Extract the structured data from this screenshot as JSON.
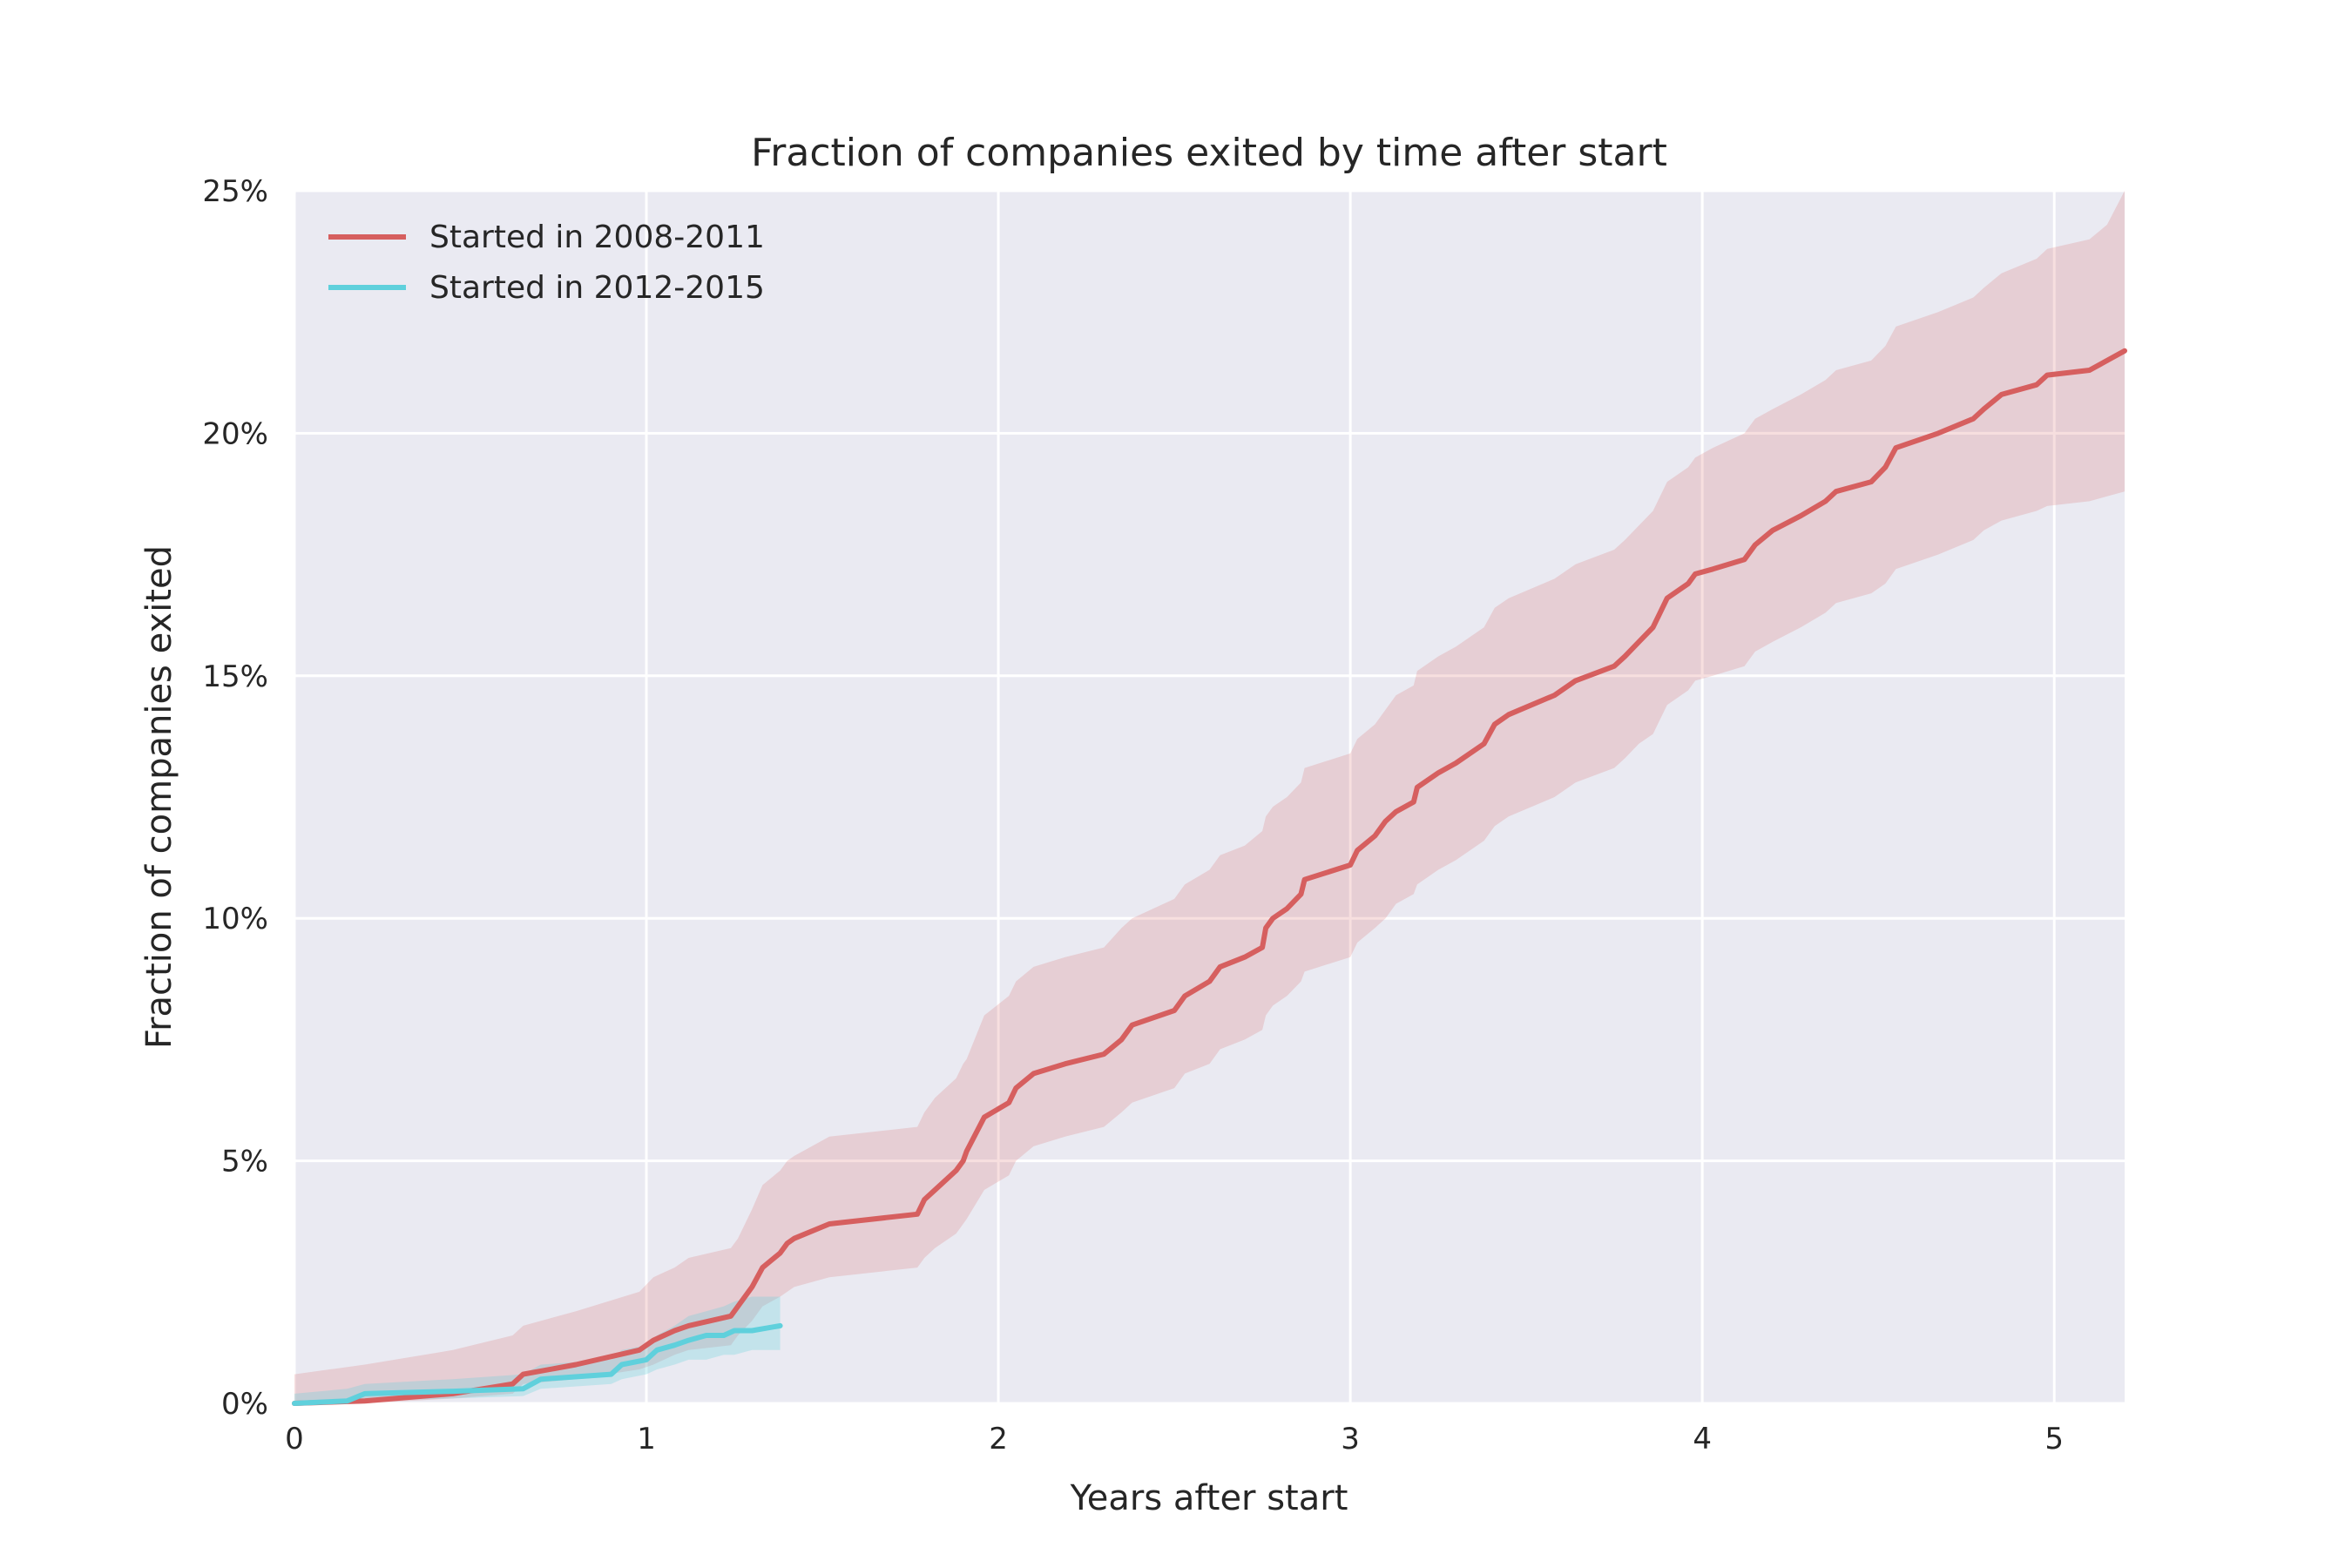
{
  "chart_data": {
    "type": "line",
    "title": "Fraction of companies exited by time after start",
    "xlabel": "Years after start",
    "ylabel": "Fraction of companies exited",
    "xlim": [
      0,
      5.2
    ],
    "ylim": [
      0,
      0.25
    ],
    "xticks": [
      0,
      1,
      2,
      3,
      4,
      5
    ],
    "xtick_labels": [
      "0",
      "1",
      "2",
      "3",
      "4",
      "5"
    ],
    "yticks": [
      0,
      0.05,
      0.1,
      0.15,
      0.2,
      0.25
    ],
    "ytick_labels": [
      "0%",
      "5%",
      "10%",
      "15%",
      "20%",
      "25%"
    ],
    "grid": true,
    "legend_position": "top-left",
    "series": [
      {
        "name": "Started in 2008-2011",
        "color": "#d65f5f",
        "x": [
          0,
          0.2,
          0.45,
          0.62,
          0.65,
          0.8,
          0.98,
          1.02,
          1.08,
          1.12,
          1.24,
          1.26,
          1.3,
          1.33,
          1.38,
          1.4,
          1.42,
          1.52,
          1.77,
          1.79,
          1.82,
          1.88,
          1.9,
          1.91,
          1.96,
          2.03,
          2.05,
          2.1,
          2.19,
          2.3,
          2.35,
          2.38,
          2.5,
          2.53,
          2.6,
          2.63,
          2.7,
          2.75,
          2.76,
          2.78,
          2.82,
          2.86,
          2.87,
          3.0,
          3.02,
          3.07,
          3.1,
          3.13,
          3.18,
          3.19,
          3.25,
          3.3,
          3.38,
          3.41,
          3.45,
          3.58,
          3.64,
          3.75,
          3.78,
          3.82,
          3.86,
          3.88,
          3.9,
          3.96,
          3.98,
          4.03,
          4.12,
          4.15,
          4.2,
          4.28,
          4.35,
          4.38,
          4.48,
          4.52,
          4.55,
          4.67,
          4.77,
          4.8,
          4.85,
          4.95,
          4.98,
          5.1,
          5.15,
          5.2
        ],
        "values": [
          0,
          0.0005,
          0.002,
          0.004,
          0.006,
          0.008,
          0.011,
          0.013,
          0.015,
          0.016,
          0.018,
          0.02,
          0.024,
          0.028,
          0.031,
          0.033,
          0.034,
          0.037,
          0.039,
          0.042,
          0.044,
          0.048,
          0.05,
          0.052,
          0.059,
          0.062,
          0.065,
          0.068,
          0.07,
          0.072,
          0.075,
          0.078,
          0.081,
          0.084,
          0.087,
          0.09,
          0.092,
          0.094,
          0.098,
          0.1,
          0.102,
          0.105,
          0.108,
          0.111,
          0.114,
          0.117,
          0.12,
          0.122,
          0.124,
          0.127,
          0.13,
          0.132,
          0.136,
          0.14,
          0.142,
          0.146,
          0.149,
          0.152,
          0.154,
          0.157,
          0.16,
          0.163,
          0.166,
          0.169,
          0.171,
          0.172,
          0.174,
          0.177,
          0.18,
          0.183,
          0.186,
          0.188,
          0.19,
          0.193,
          0.197,
          0.2,
          0.203,
          0.205,
          0.208,
          0.21,
          0.212,
          0.213,
          0.215,
          0.217
        ],
        "band_lower": [
          0,
          0,
          0.001,
          0.002,
          0.004,
          0.005,
          0.007,
          0.008,
          0.01,
          0.011,
          0.012,
          0.014,
          0.017,
          0.02,
          0.022,
          0.023,
          0.024,
          0.026,
          0.028,
          0.03,
          0.032,
          0.035,
          0.037,
          0.038,
          0.044,
          0.047,
          0.05,
          0.053,
          0.055,
          0.057,
          0.06,
          0.062,
          0.065,
          0.068,
          0.07,
          0.073,
          0.075,
          0.077,
          0.08,
          0.082,
          0.084,
          0.087,
          0.089,
          0.092,
          0.095,
          0.098,
          0.1,
          0.103,
          0.105,
          0.107,
          0.11,
          0.112,
          0.116,
          0.119,
          0.121,
          0.125,
          0.128,
          0.131,
          0.133,
          0.136,
          0.138,
          0.141,
          0.144,
          0.147,
          0.149,
          0.15,
          0.152,
          0.155,
          0.157,
          0.16,
          0.163,
          0.165,
          0.167,
          0.169,
          0.172,
          0.175,
          0.178,
          0.18,
          0.182,
          0.184,
          0.185,
          0.186,
          0.187,
          0.188
        ],
        "band_upper": [
          0.006,
          0.008,
          0.011,
          0.014,
          0.016,
          0.019,
          0.023,
          0.026,
          0.028,
          0.03,
          0.032,
          0.034,
          0.04,
          0.045,
          0.048,
          0.05,
          0.051,
          0.055,
          0.057,
          0.06,
          0.063,
          0.067,
          0.07,
          0.071,
          0.08,
          0.084,
          0.087,
          0.09,
          0.092,
          0.094,
          0.098,
          0.1,
          0.104,
          0.107,
          0.11,
          0.113,
          0.115,
          0.118,
          0.121,
          0.123,
          0.125,
          0.128,
          0.131,
          0.134,
          0.137,
          0.14,
          0.143,
          0.146,
          0.148,
          0.151,
          0.154,
          0.156,
          0.16,
          0.164,
          0.166,
          0.17,
          0.173,
          0.176,
          0.178,
          0.181,
          0.184,
          0.187,
          0.19,
          0.193,
          0.195,
          0.197,
          0.2,
          0.203,
          0.205,
          0.208,
          0.211,
          0.213,
          0.215,
          0.218,
          0.222,
          0.225,
          0.228,
          0.23,
          0.233,
          0.236,
          0.238,
          0.24,
          0.243,
          0.25
        ]
      },
      {
        "name": "Started in 2012-2015",
        "color": "#5fd0dc",
        "x": [
          0,
          0.15,
          0.2,
          0.45,
          0.65,
          0.7,
          0.9,
          0.93,
          1.0,
          1.03,
          1.08,
          1.12,
          1.17,
          1.22,
          1.25,
          1.3,
          1.38
        ],
        "values": [
          0,
          0.0005,
          0.002,
          0.0025,
          0.003,
          0.005,
          0.006,
          0.008,
          0.009,
          0.011,
          0.012,
          0.013,
          0.014,
          0.014,
          0.015,
          0.015,
          0.016
        ],
        "band_lower": [
          0,
          0,
          0.0005,
          0.001,
          0.0015,
          0.003,
          0.004,
          0.005,
          0.006,
          0.007,
          0.008,
          0.009,
          0.009,
          0.01,
          0.01,
          0.011,
          0.011
        ],
        "band_upper": [
          0.002,
          0.003,
          0.004,
          0.005,
          0.006,
          0.008,
          0.009,
          0.011,
          0.012,
          0.014,
          0.016,
          0.018,
          0.019,
          0.02,
          0.021,
          0.022,
          0.022
        ]
      }
    ]
  }
}
